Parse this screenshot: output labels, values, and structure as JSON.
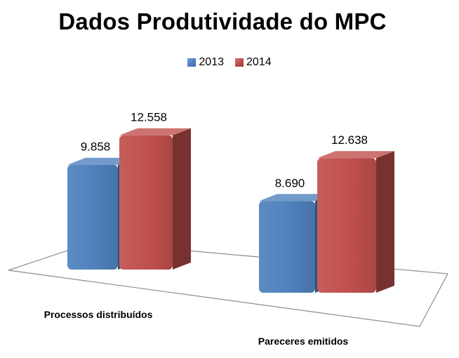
{
  "chart_data": {
    "type": "bar",
    "title": "Dados Produtividade do MPC",
    "categories": [
      "Processos distribuídos",
      "Pareceres emitidos"
    ],
    "series": [
      {
        "name": "2013",
        "values": [
          9858,
          8690
        ],
        "labels": [
          "9.858",
          "8.690"
        ],
        "color": "#4f81bd"
      },
      {
        "name": "2014",
        "values": [
          12558,
          12638
        ],
        "labels": [
          "12.558",
          "12.638"
        ],
        "color": "#c0504d"
      }
    ],
    "xlabel": "",
    "ylabel": "",
    "grid": false,
    "legend": "top",
    "style": "3d-perspective"
  }
}
